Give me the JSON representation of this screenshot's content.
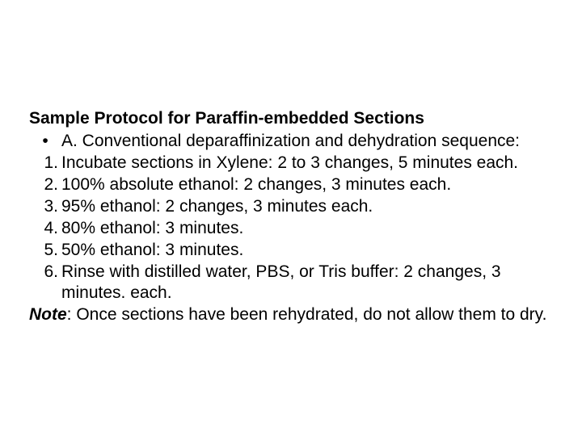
{
  "title": "Sample Protocol for Paraffin-embedded Sections",
  "bullet": {
    "marker": "•",
    "text": "A. Conventional deparaffinization and dehydration sequence:"
  },
  "steps": [
    {
      "n": "1.",
      "text": "Incubate sections in Xylene: 2 to 3 changes, 5 minutes each."
    },
    {
      "n": "2.",
      "text": "100% absolute ethanol: 2 changes, 3 minutes each."
    },
    {
      "n": "3.",
      "text": "95% ethanol: 2 changes, 3 minutes each."
    },
    {
      "n": "4.",
      "text": "80% ethanol: 3 minutes."
    },
    {
      "n": "5.",
      "text": "50% ethanol: 3 minutes."
    },
    {
      "n": "6.",
      "text": "Rinse with distilled water, PBS, or Tris buffer: 2 changes, 3 minutes. each."
    }
  ],
  "note": {
    "label": "Note",
    "text": ": Once sections have been rehydrated, do not allow them to dry."
  }
}
